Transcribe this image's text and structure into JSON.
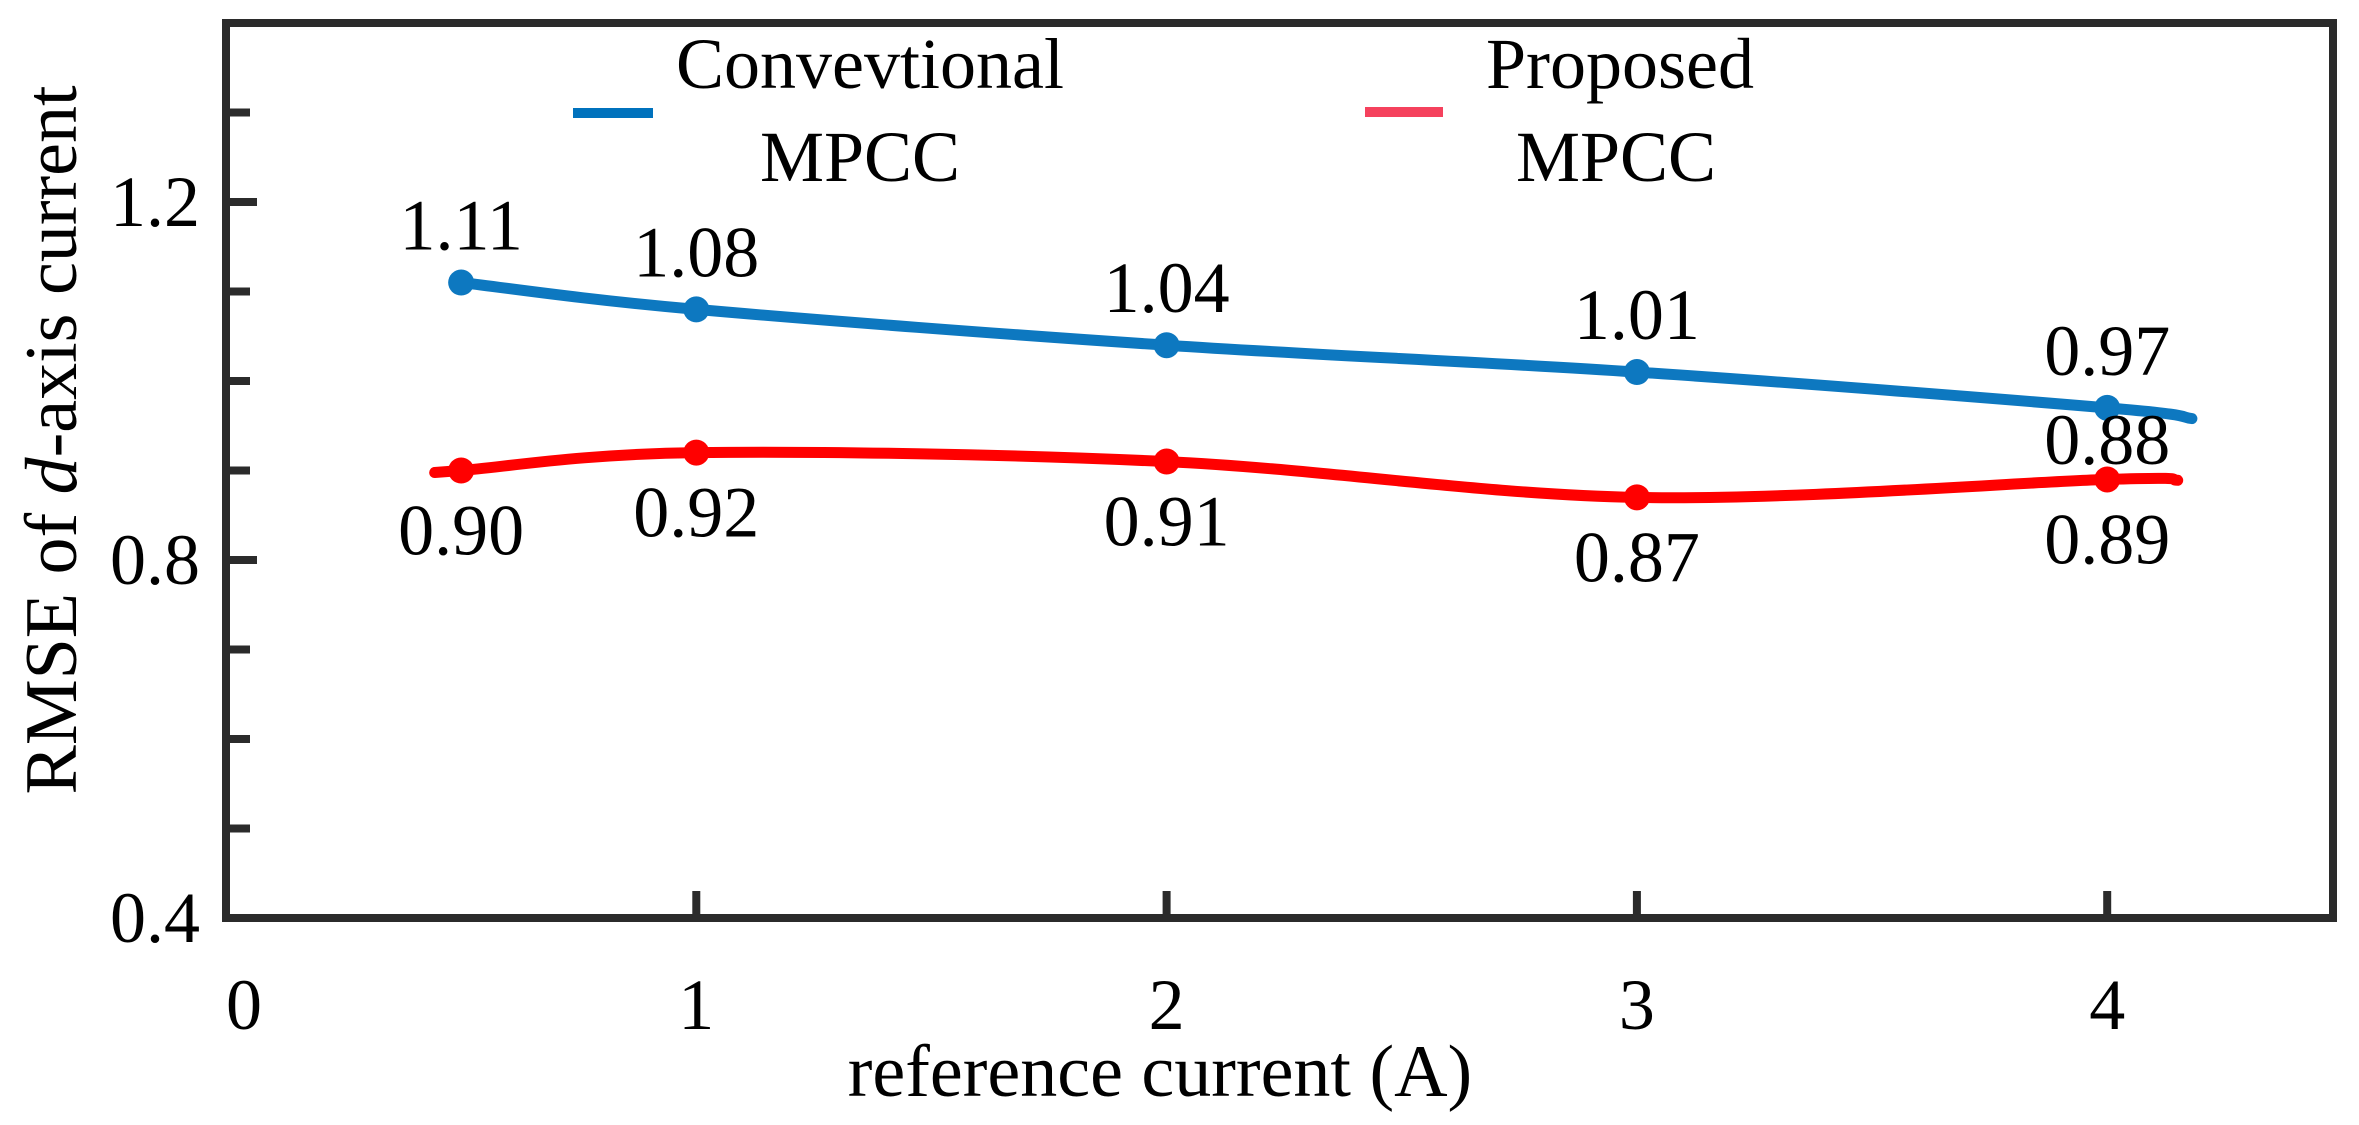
{
  "figure": {
    "background": "#ffffff",
    "frame_color": "#2b2b2b",
    "text_color": "#000000"
  },
  "chart_data": {
    "type": "line",
    "title": "",
    "xlabel": "reference current (A)",
    "ylabel": "RMSE of d-axis current",
    "ylabel_parts": {
      "pre": "RMSE of ",
      "italic": "d",
      "post": "-axis current"
    },
    "xlim": [
      0,
      4.48
    ],
    "ylim": [
      0.4,
      1.4
    ],
    "grid": false,
    "legend_position": "top",
    "x_ticks": [
      0,
      1,
      2,
      3,
      4
    ],
    "x_tick_labels": [
      "0",
      "1",
      "2",
      "3",
      "4"
    ],
    "y_ticks_major": [
      0.4,
      0.8,
      1.2
    ],
    "y_tick_labels": [
      "0.4",
      "0.8",
      "1.2"
    ],
    "y_ticks_minor": [
      0.5,
      0.6,
      0.7,
      0.9,
      1.0,
      1.1,
      1.3
    ],
    "x": [
      0.5,
      1,
      2,
      3,
      4
    ],
    "series": [
      {
        "name": "Convevtional MPCC",
        "legend_line1": "Convevtional",
        "legend_line2": "MPCC",
        "color": "#0d78c0",
        "legend_color": "#0072bd",
        "values": [
          1.11,
          1.08,
          1.04,
          1.01,
          0.97
        ],
        "point_labels": [
          "1.11",
          "1.08",
          "1.04",
          "1.01",
          "0.97"
        ],
        "label_side": "above",
        "line_extension": {
          "right": [
            4.18,
            0.958
          ]
        }
      },
      {
        "name": "Proposed MPCC",
        "legend_line1": "Proposed",
        "legend_line2": "MPCC",
        "color": "#ff0000",
        "legend_color": "#f5415d",
        "values": [
          0.9,
          0.92,
          0.91,
          0.87,
          0.89
        ],
        "point_labels": [
          "0.90",
          "0.92",
          "0.91",
          "0.87",
          "0.89"
        ],
        "label_side": "below",
        "line_extension": {
          "left": [
            0.45,
            0.898
          ],
          "right": [
            4.15,
            0.889
          ]
        }
      }
    ],
    "annotations": [
      {
        "text": "0.88",
        "x": 4,
        "y": 0.934
      }
    ]
  }
}
